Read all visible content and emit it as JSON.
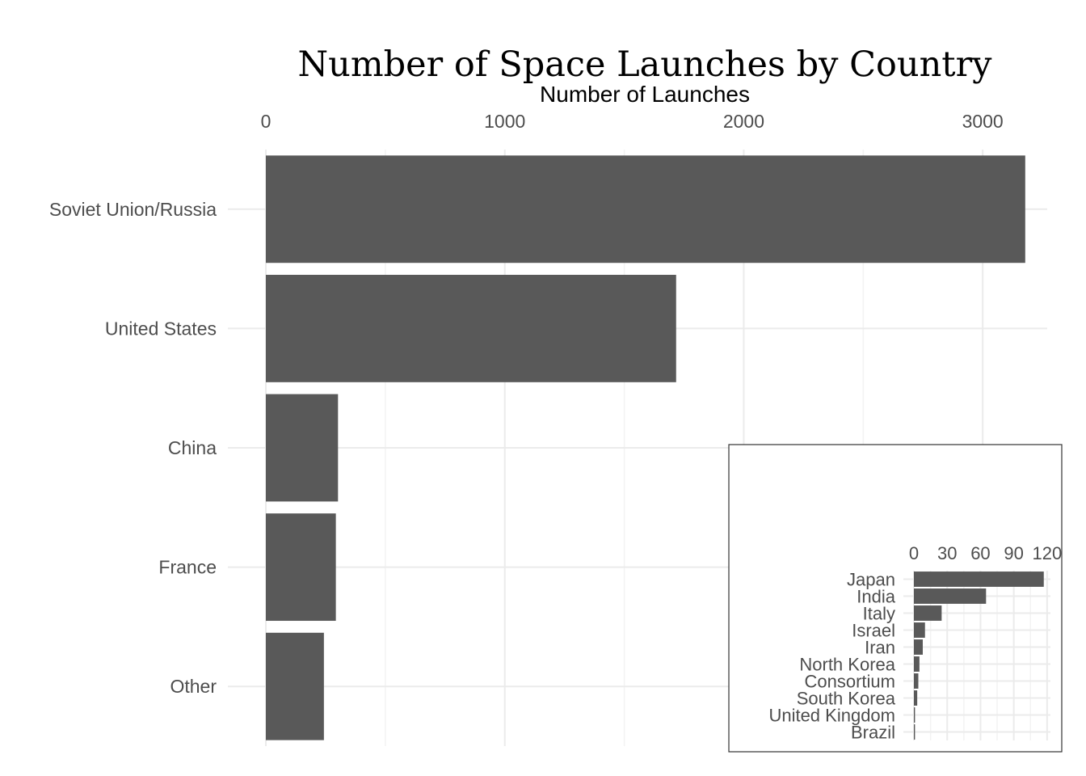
{
  "chart_data": [
    {
      "type": "bar",
      "orientation": "horizontal",
      "title": "Number of Space Launches by Country",
      "xlabel": "Number of Launches",
      "ylabel": "",
      "x_axis_position": "top",
      "xlim": [
        0,
        3270
      ],
      "x_ticks": [
        0,
        1000,
        2000,
        3000
      ],
      "grid": true,
      "bar_color": "#595959",
      "categories": [
        "Soviet Union/Russia",
        "United States",
        "China",
        "France",
        "Other"
      ],
      "values": [
        3178,
        1717,
        302,
        293,
        243
      ]
    },
    {
      "type": "bar",
      "orientation": "horizontal",
      "title": "",
      "xlabel": "",
      "ylabel": "",
      "x_axis_position": "top",
      "placement": "bottom-right inset",
      "xlim": [
        0,
        123
      ],
      "x_ticks": [
        0,
        30,
        60,
        90,
        120
      ],
      "grid": true,
      "bar_color": "#595959",
      "categories": [
        "Japan",
        "India",
        "Italy",
        "Israel",
        "Iran",
        "North Korea",
        "Consortium",
        "South Korea",
        "United Kingdom",
        "Brazil"
      ],
      "values": [
        117,
        65,
        25,
        10,
        8,
        5,
        4,
        3,
        1,
        1
      ]
    }
  ]
}
